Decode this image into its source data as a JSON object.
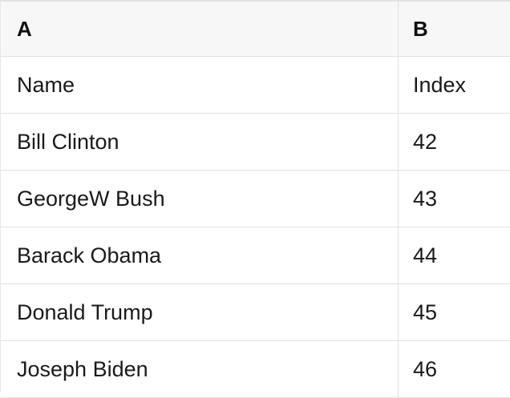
{
  "colors": {
    "header_background": "#f7f7f7",
    "grid_border": "#e0e0e0",
    "cell_background": "#ffffff",
    "text": "#1a1a1a"
  },
  "spreadsheet": {
    "column_headers": [
      "A",
      "B"
    ],
    "rows": [
      [
        "Name",
        "Index"
      ],
      [
        "Bill Clinton",
        42
      ],
      [
        "GeorgeW Bush",
        43
      ],
      [
        "Barack Obama",
        44
      ],
      [
        "Donald Trump",
        45
      ],
      [
        "Joseph Biden",
        46
      ]
    ]
  }
}
